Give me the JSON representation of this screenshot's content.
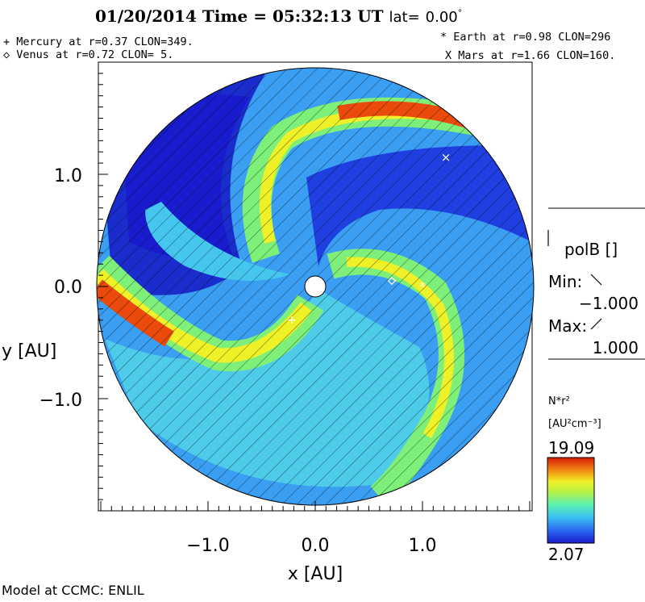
{
  "header": {
    "date": "01/20/2014",
    "time_label": "Time =",
    "time": "05:32:13 UT",
    "lat_label": "lat=",
    "lat_value": "0.00",
    "lat_unit": "°"
  },
  "planets": {
    "mercury": "+ Mercury at r=0.37 CLON=349.",
    "venus": "◇ Venus at r=0.72 CLON=  5.",
    "earth": "* Earth at  r=0.98 CLON=296",
    "mars": "X Mars at r=1.66 CLON=160."
  },
  "axes": {
    "xlabel": "x [AU]",
    "ylabel": "y [AU]",
    "xticks": [
      "−1.0",
      "0.0",
      "1.0"
    ],
    "yticks": [
      "1.0",
      "0.0",
      "−1.0"
    ]
  },
  "field": {
    "title": "polB []",
    "min_label": "Min:",
    "min_value": "−1.000",
    "max_label": "Max:",
    "max_value": "1.000"
  },
  "colorbar": {
    "label": "N*r²",
    "unit": "[AU²cm⁻³]",
    "max": "19.09",
    "min": "2.07",
    "colors": [
      "#1a1acc",
      "#1f3fe0",
      "#2a6af0",
      "#2d96f6",
      "#3cc0f5",
      "#4ee0e0",
      "#5cf2b0",
      "#7ef07a",
      "#b8f044",
      "#eef028",
      "#f0c418",
      "#f08a10",
      "#ea4a0c",
      "#d81a0a"
    ]
  },
  "footer": {
    "credit": "Model at CCMC: ENLIL"
  }
}
